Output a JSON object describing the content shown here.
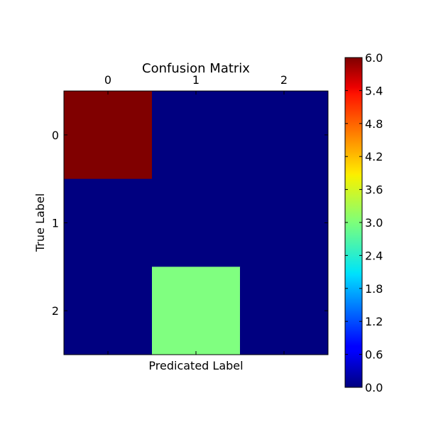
{
  "chart_data": {
    "type": "heatmap",
    "title": "Confusion Matrix",
    "xlabel": "Predicated Label",
    "ylabel": "True Label",
    "x_tick_labels": [
      "0",
      "1",
      "2"
    ],
    "y_tick_labels": [
      "0",
      "1",
      "2"
    ],
    "matrix": [
      [
        6,
        0,
        0
      ],
      [
        0,
        0,
        0
      ],
      [
        0,
        3,
        0
      ]
    ],
    "colormap": "jet",
    "color_range": [
      0,
      6
    ],
    "colorbar_ticks": [
      "0.0",
      "0.6",
      "1.2",
      "1.8",
      "2.4",
      "3.0",
      "3.6",
      "4.2",
      "4.8",
      "5.4",
      "6.0"
    ],
    "x_axis_position": "top",
    "grid": false
  }
}
